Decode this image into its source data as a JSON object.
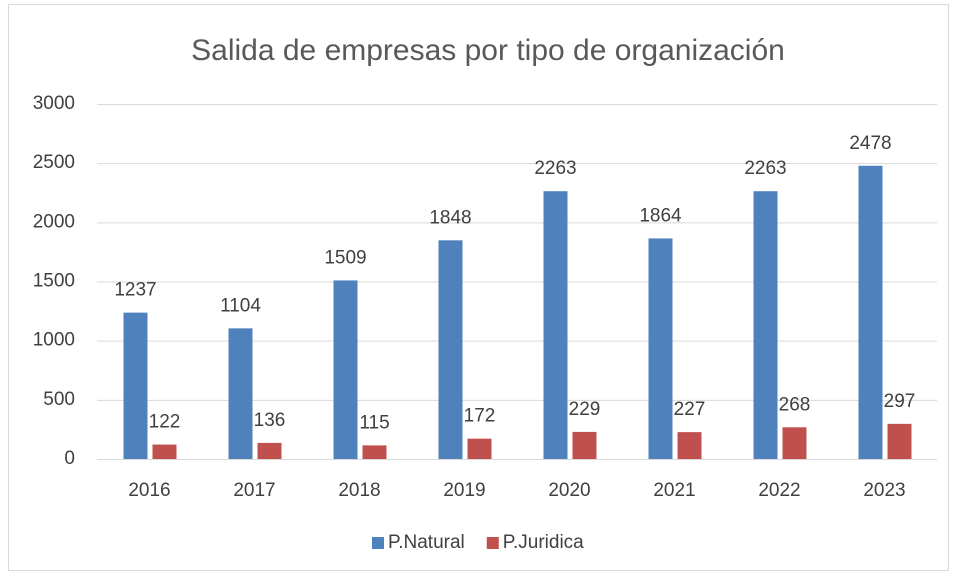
{
  "chart_data": {
    "type": "bar",
    "title": "Salida de empresas por tipo de organización",
    "categories": [
      "2016",
      "2017",
      "2018",
      "2019",
      "2020",
      "2021",
      "2022",
      "2023"
    ],
    "series": [
      {
        "name": "P.Natural",
        "color": "#4f81bd",
        "values": [
          1237,
          1104,
          1509,
          1848,
          2263,
          1864,
          2263,
          2478
        ]
      },
      {
        "name": "P.Juridica",
        "color": "#c0504d",
        "values": [
          122,
          136,
          115,
          172,
          229,
          227,
          268,
          297
        ]
      }
    ],
    "ylim": [
      0,
      3000
    ],
    "yticks": [
      0,
      500,
      1000,
      1500,
      2000,
      2500,
      3000
    ],
    "grid": true,
    "legend": "bottom"
  }
}
